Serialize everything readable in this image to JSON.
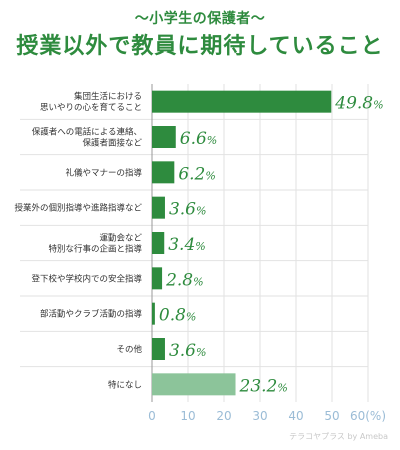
{
  "header": {
    "subtitle": "～小学生の保護者～",
    "title": "授業以外で教員に期待していること"
  },
  "watermark": "テラコヤプラス by Ameba",
  "chart_data": {
    "type": "bar",
    "orientation": "horizontal",
    "title": "授業以外で教員に期待していること",
    "subtitle": "～小学生の保護者～",
    "categories": [
      [
        "集団生活における",
        "思いやりの心を育てること"
      ],
      [
        "保護者への電話による連絡、",
        "保護者面接など"
      ],
      [
        "礼儀やマナーの指導"
      ],
      [
        "授業外の個別指導や進路指導など"
      ],
      [
        "運動会など",
        "特別な行事の企画と指導"
      ],
      [
        "登下校や学校内での安全指導"
      ],
      [
        "部活動やクラブ活動の指導"
      ],
      [
        "その他"
      ],
      [
        "特になし"
      ]
    ],
    "values": [
      49.8,
      6.6,
      6.2,
      3.6,
      3.4,
      2.8,
      0.8,
      3.6,
      23.2
    ],
    "value_suffix": "%",
    "xlim": [
      0,
      60
    ],
    "xticks": [
      "0",
      "10",
      "20",
      "30",
      "40",
      "50",
      "60(%)"
    ],
    "grid": true,
    "colors": {
      "bar": "#2e8b3e",
      "bar_alt": "#8cc49a",
      "label": "#2e8b3e",
      "grid": "#e2e2e2",
      "tick": "#9bbcd6"
    }
  }
}
